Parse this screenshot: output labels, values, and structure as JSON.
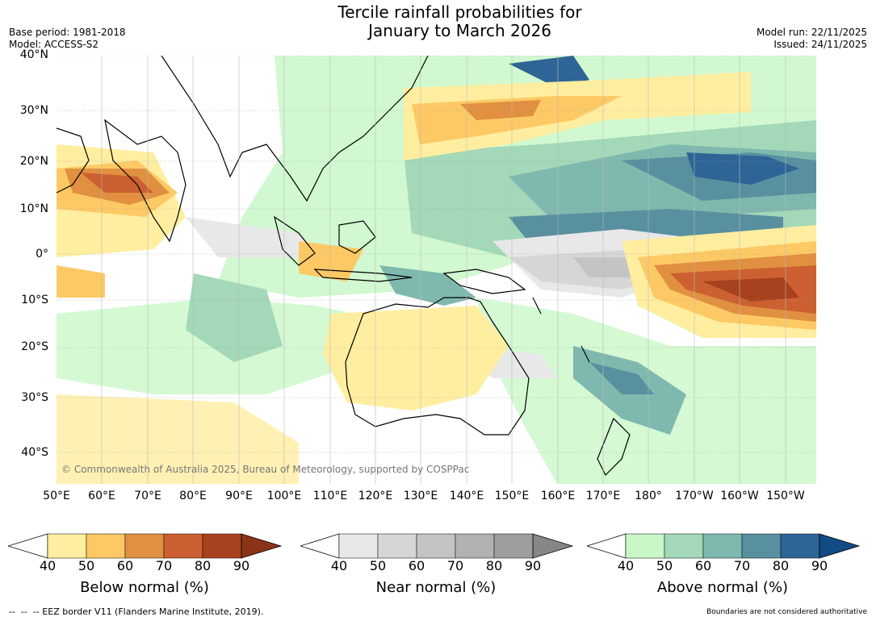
{
  "title": {
    "line1": "Tercile rainfall probabilities for",
    "line2": "January to March 2026"
  },
  "meta": {
    "base_period": "Base period: 1981-2018",
    "model": "Model: ACCESS-S2",
    "model_run": "Model run: 22/11/2025",
    "issued": "Issued: 24/11/2025"
  },
  "map": {
    "copyright": "© Commonwealth of Australia 2025, Bureau of Meteorology, supported by COSPPac",
    "lat_labels": [
      "40°N",
      "30°N",
      "20°N",
      "10°N",
      "0°",
      "10°S",
      "20°S",
      "30°S",
      "40°S"
    ],
    "lon_labels": [
      "50°E",
      "60°E",
      "70°E",
      "80°E",
      "90°E",
      "100°E",
      "110°E",
      "120°E",
      "130°E",
      "140°E",
      "150°E",
      "160°E",
      "170°E",
      "180°",
      "170°W",
      "160°W",
      "150°W"
    ]
  },
  "legend": {
    "below": {
      "label": "Below normal (%)",
      "ticks": [
        "40",
        "50",
        "60",
        "70",
        "80",
        "90"
      ],
      "colors": [
        "#ffeea0",
        "#fdc964",
        "#e09040",
        "#cc6030",
        "#a8421e",
        "#8b3318"
      ]
    },
    "near": {
      "label": "Near normal (%)",
      "ticks": [
        "40",
        "50",
        "60",
        "70",
        "80",
        "90"
      ],
      "colors": [
        "#e8e8e8",
        "#d6d6d6",
        "#c4c4c4",
        "#b2b2b2",
        "#9e9e9e",
        "#868686"
      ]
    },
    "above": {
      "label": "Above normal (%)",
      "ticks": [
        "40",
        "50",
        "60",
        "70",
        "80",
        "90"
      ],
      "colors": [
        "#c9f7c8",
        "#a3d8b8",
        "#7fb8ae",
        "#5890a0",
        "#2e6596",
        "#124b85"
      ]
    }
  },
  "footer": {
    "eez_note": "--  --  -- EEZ border V11 (Flanders Marine Institute, 2019).",
    "boundaries_note": "Boundaries are not considered authoritative"
  }
}
